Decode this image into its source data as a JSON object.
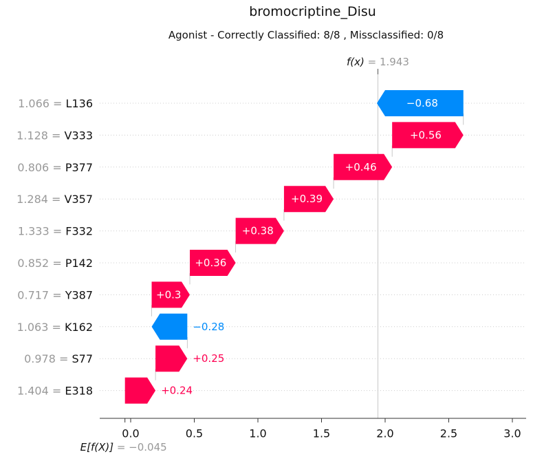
{
  "chart_data": {
    "type": "waterfall",
    "title": "bromocriptine_Disu",
    "subtitle": "Agonist - Correctly Classified: 8/8 , Missclassified: 0/8",
    "base_value": -0.045,
    "base_value_label": "= −0.045",
    "base_symbol": "E[f(X)]",
    "output_value": 1.943,
    "output_value_label": "= 1.943",
    "output_symbol": "f(x)",
    "features": [
      {
        "name": "L136",
        "value_label": "1.066 =",
        "contribution": -0.68,
        "label": "−0.68"
      },
      {
        "name": "V333",
        "value_label": "1.128 =",
        "contribution": 0.56,
        "label": "+0.56"
      },
      {
        "name": "P377",
        "value_label": "0.806 =",
        "contribution": 0.46,
        "label": "+0.46"
      },
      {
        "name": "V357",
        "value_label": "1.284 =",
        "contribution": 0.39,
        "label": "+0.39"
      },
      {
        "name": "F332",
        "value_label": "1.333 =",
        "contribution": 0.38,
        "label": "+0.38"
      },
      {
        "name": "P142",
        "value_label": "0.852 =",
        "contribution": 0.36,
        "label": "+0.36"
      },
      {
        "name": "Y387",
        "value_label": "0.717 =",
        "contribution": 0.3,
        "label": "+0.3"
      },
      {
        "name": "K162",
        "value_label": "1.063 =",
        "contribution": -0.28,
        "label": "−0.28"
      },
      {
        "name": "S77",
        "value_label": "0.978 =",
        "contribution": 0.25,
        "label": "+0.25"
      },
      {
        "name": "E318",
        "value_label": "1.404 =",
        "contribution": 0.24,
        "label": "+0.24"
      }
    ],
    "x_ticks": [
      0.0,
      0.5,
      1.0,
      1.5,
      2.0,
      2.5,
      3.0
    ],
    "x_tick_labels": [
      "0.0",
      "0.5",
      "1.0",
      "1.5",
      "2.0",
      "2.5",
      "3.0"
    ],
    "xlim": [
      -0.12,
      3.05
    ],
    "colors": {
      "positive": "#ff0051",
      "negative": "#008bfb",
      "muted": "#999999",
      "text": "#111111"
    }
  }
}
